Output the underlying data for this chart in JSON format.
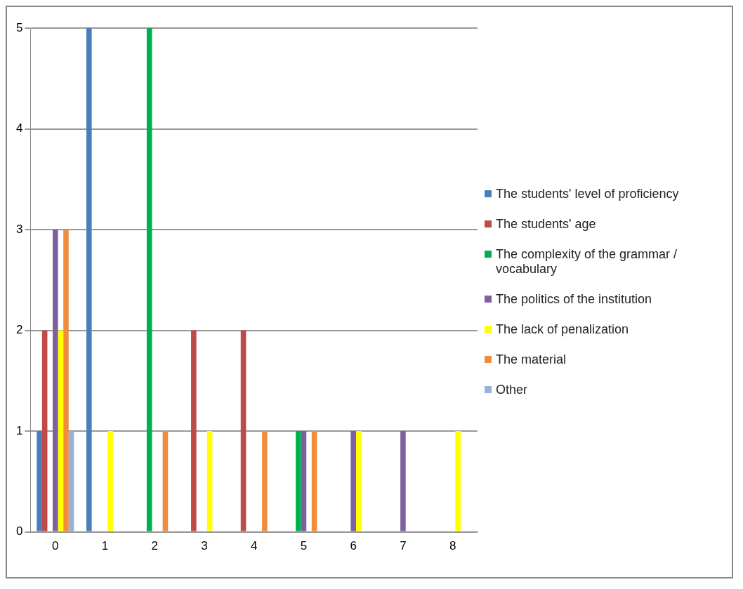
{
  "chart_data": {
    "type": "bar",
    "categories": [
      "0",
      "1",
      "2",
      "3",
      "4",
      "5",
      "6",
      "7",
      "8"
    ],
    "series": [
      {
        "name": "The students' level of proficiency",
        "color": "#4a7ebb",
        "values": [
          1,
          5,
          0,
          0,
          0,
          0,
          0,
          0,
          0
        ]
      },
      {
        "name": "The students' age",
        "color": "#be4b48",
        "values": [
          2,
          0,
          0,
          2,
          2,
          0,
          0,
          0,
          0
        ]
      },
      {
        "name": "The complexity of the grammar / vocabulary",
        "color": "#00b050",
        "values": [
          0,
          0,
          5,
          0,
          0,
          1,
          0,
          0,
          0
        ]
      },
      {
        "name": "The politics of the institution",
        "color": "#7d60a0",
        "values": [
          3,
          0,
          0,
          0,
          0,
          1,
          1,
          1,
          0
        ]
      },
      {
        "name": "The lack of penalization",
        "color": "#ffff00",
        "values": [
          2,
          1,
          0,
          1,
          0,
          0,
          1,
          0,
          1
        ]
      },
      {
        "name": "The material",
        "color": "#f08c3c",
        "values": [
          3,
          0,
          1,
          0,
          1,
          1,
          0,
          0,
          0
        ]
      },
      {
        "name": "Other",
        "color": "#98b1d9",
        "values": [
          1,
          0,
          0,
          0,
          0,
          0,
          0,
          0,
          0
        ]
      }
    ],
    "ylim": [
      0,
      5
    ],
    "yticks": [
      0,
      1,
      2,
      3,
      4,
      5
    ],
    "grid": "y",
    "legend": "right"
  }
}
